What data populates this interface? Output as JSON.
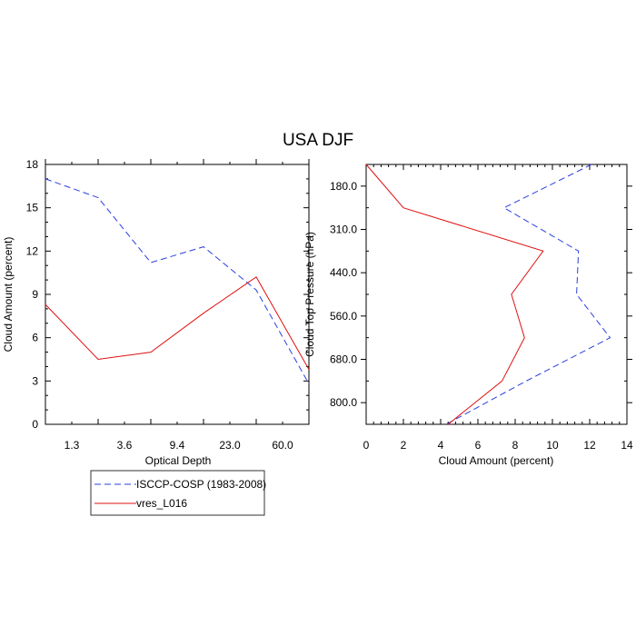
{
  "figure": {
    "title": "USA DJF"
  },
  "colors": {
    "isccp": "#2a3fe0",
    "model": "#e01010",
    "axis": "#000000"
  },
  "legend": {
    "entries": [
      {
        "label": "ISCCP-COSP (1983-2008)",
        "style": "dashed",
        "color_key": "isccp"
      },
      {
        "label": "vres_L016",
        "style": "solid",
        "color_key": "model"
      }
    ]
  },
  "chart_data": [
    {
      "type": "line",
      "panel": "left",
      "xlabel": "Optical Depth",
      "ylabel": "Cloud Amount (percent)",
      "x_tick_labels": [
        "1.3",
        "3.6",
        "9.4",
        "23.0",
        "60.0"
      ],
      "y_ticks": [
        0,
        3,
        6,
        9,
        12,
        15,
        18
      ],
      "ylim": [
        0,
        18
      ],
      "x_positions": [
        0,
        1,
        2,
        3,
        4,
        5
      ],
      "series": [
        {
          "name": "ISCCP-COSP (1983-2008)",
          "values": [
            17.0,
            15.7,
            11.2,
            12.3,
            9.3,
            2.8
          ]
        },
        {
          "name": "vres_L016",
          "values": [
            8.3,
            4.5,
            5.0,
            7.7,
            10.2,
            3.8
          ]
        }
      ]
    },
    {
      "type": "line",
      "panel": "right",
      "xlabel": "Cloud Amount (percent)",
      "ylabel": "Cloud Top Pressure (hPa)",
      "x_ticks": [
        0,
        2,
        4,
        6,
        8,
        10,
        12,
        14
      ],
      "xlim": [
        0,
        14
      ],
      "y_tick_labels": [
        "180.0",
        "310.0",
        "440.0",
        "560.0",
        "680.0",
        "800.0"
      ],
      "pressure_levels": 7,
      "series": [
        {
          "name": "ISCCP-COSP (1983-2008)",
          "values": [
            12.1,
            7.4,
            11.4,
            11.3,
            13.1,
            8.6,
            4.3
          ]
        },
        {
          "name": "vres_L016",
          "values": [
            0.0,
            2.0,
            9.5,
            7.8,
            8.5,
            7.3,
            4.4
          ]
        }
      ]
    }
  ]
}
